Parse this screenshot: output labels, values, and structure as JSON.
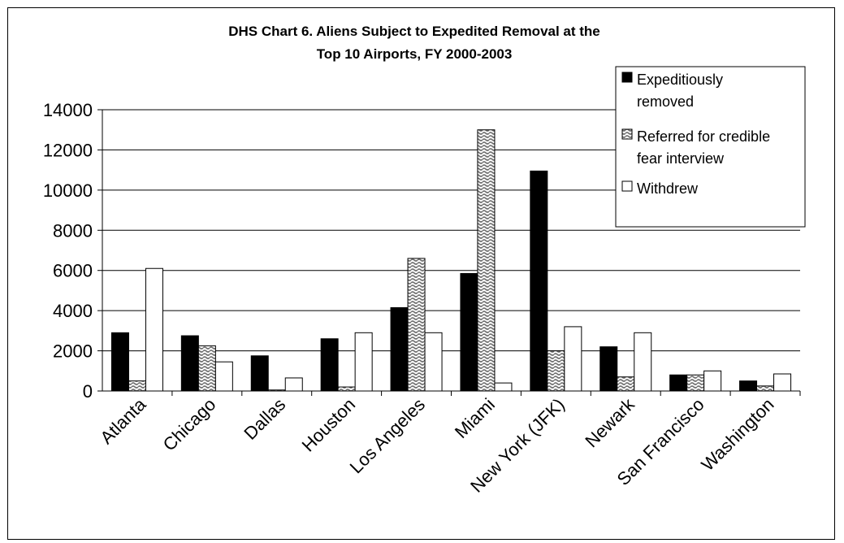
{
  "chart_data": {
    "type": "bar",
    "title": [
      "DHS Chart 6. Aliens Subject to Expedited Removal at the",
      "Top 10 Airports, FY 2000-2003"
    ],
    "xlabel": "",
    "ylabel": "",
    "ylim": [
      0,
      14000
    ],
    "yticks": [
      "0",
      "2000",
      "4000",
      "6000",
      "8000",
      "10000",
      "12000",
      "14000"
    ],
    "grid": true,
    "legend_position": "top-right",
    "categories": [
      "Atlanta",
      "Chicago",
      "Dallas",
      "Houston",
      "Los Angeles",
      "Miami",
      "New York (JFK)",
      "Newark",
      "San Francisco",
      "Washington"
    ],
    "series": [
      {
        "name": "Expeditiously removed",
        "legend_lines": [
          "Expeditiously",
          "removed"
        ],
        "fill": "solid",
        "color": "#000000",
        "values": [
          2900,
          2750,
          1750,
          2600,
          4150,
          5850,
          10950,
          2200,
          800,
          500
        ]
      },
      {
        "name": "Referred for credible fear interview",
        "legend_lines": [
          "Referred for credible",
          "fear interview"
        ],
        "fill": "wave-pattern",
        "color": "#808080",
        "values": [
          500,
          2250,
          50,
          200,
          6600,
          13000,
          2000,
          700,
          800,
          250
        ]
      },
      {
        "name": "Withdrew",
        "legend_lines": [
          "Withdrew"
        ],
        "fill": "white",
        "color": "#ffffff",
        "values": [
          6100,
          1450,
          650,
          2900,
          2900,
          400,
          3200,
          2900,
          1000,
          850
        ]
      }
    ]
  }
}
